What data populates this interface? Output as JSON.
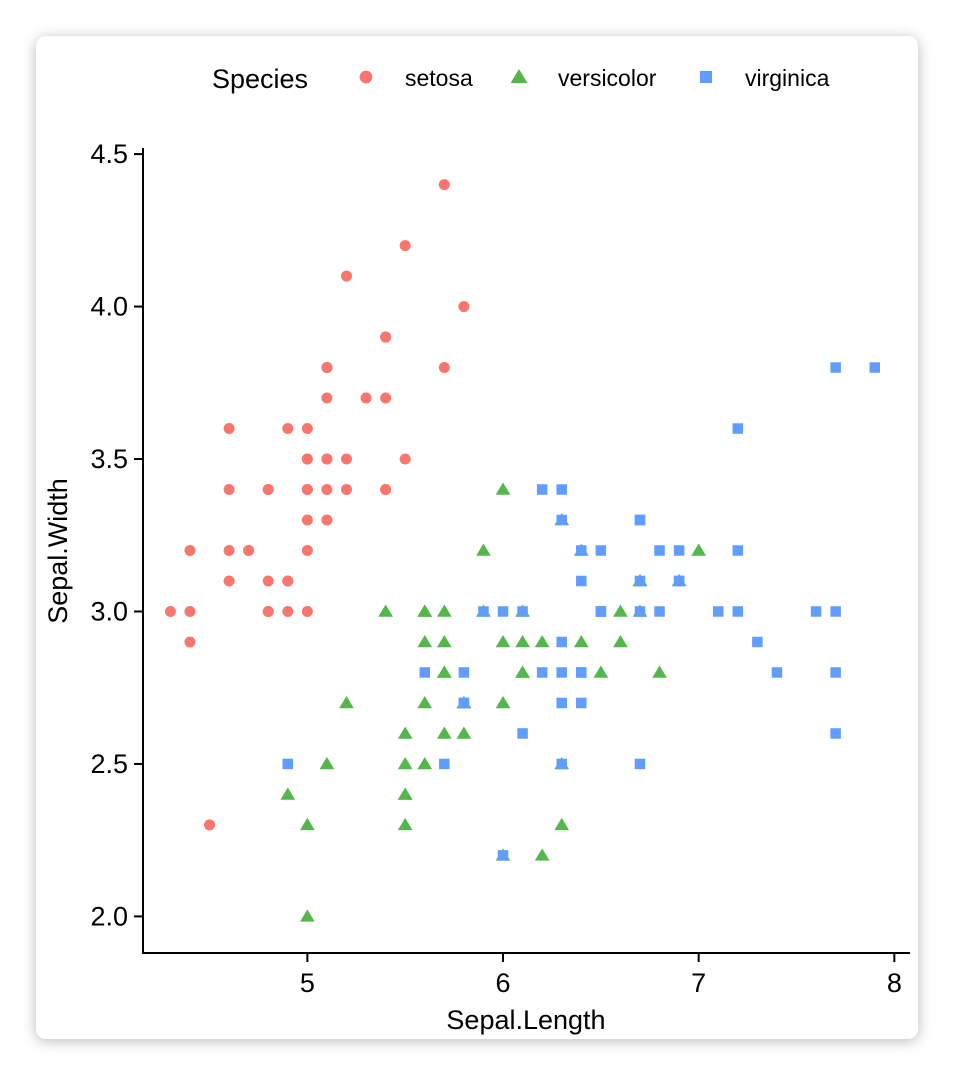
{
  "chart_data": {
    "type": "scatter",
    "xlabel": "Sepal.Length",
    "ylabel": "Sepal.Width",
    "xlim": [
      4.16,
      8.08
    ],
    "ylim": [
      1.88,
      4.52
    ],
    "xticks": [
      5,
      6,
      7,
      8
    ],
    "yticks": [
      2.0,
      2.5,
      3.0,
      3.5,
      4.0,
      4.5
    ],
    "xtick_labels": [
      "5",
      "6",
      "7",
      "8"
    ],
    "ytick_labels": [
      "2.0",
      "2.5",
      "3.0",
      "3.5",
      "4.0",
      "4.5"
    ],
    "grid": false,
    "legend": {
      "title": "Species",
      "position": "top"
    },
    "series": [
      {
        "name": "setosa",
        "color": "#F8766D",
        "marker": "circle",
        "x": [
          5.1,
          4.9,
          4.7,
          4.6,
          5.0,
          5.4,
          4.6,
          5.0,
          4.4,
          4.9,
          5.4,
          4.8,
          4.8,
          4.3,
          5.8,
          5.7,
          5.4,
          5.1,
          5.7,
          5.1,
          5.4,
          5.1,
          4.6,
          5.1,
          4.8,
          5.0,
          5.0,
          5.2,
          5.2,
          4.7,
          4.8,
          5.4,
          5.2,
          5.5,
          4.9,
          5.0,
          5.5,
          4.9,
          4.4,
          5.1,
          5.0,
          4.5,
          4.4,
          5.0,
          5.1,
          4.8,
          5.1,
          4.6,
          5.3,
          5.0
        ],
        "y": [
          3.5,
          3.0,
          3.2,
          3.1,
          3.6,
          3.9,
          3.4,
          3.4,
          2.9,
          3.1,
          3.7,
          3.4,
          3.0,
          3.0,
          4.0,
          4.4,
          3.9,
          3.5,
          3.8,
          3.8,
          3.4,
          3.7,
          3.6,
          3.3,
          3.4,
          3.0,
          3.4,
          3.5,
          3.4,
          3.2,
          3.1,
          3.4,
          4.1,
          4.2,
          3.1,
          3.2,
          3.5,
          3.6,
          3.0,
          3.4,
          3.5,
          2.3,
          3.2,
          3.5,
          3.8,
          3.0,
          3.8,
          3.2,
          3.7,
          3.3
        ]
      },
      {
        "name": "versicolor",
        "color": "#53B74C",
        "marker": "triangle",
        "x": [
          7.0,
          6.4,
          6.9,
          5.5,
          6.5,
          5.7,
          6.3,
          4.9,
          6.6,
          5.2,
          5.0,
          5.9,
          6.0,
          6.1,
          5.6,
          6.7,
          5.6,
          5.8,
          6.2,
          5.6,
          5.9,
          6.1,
          6.3,
          6.1,
          6.4,
          6.6,
          6.8,
          6.7,
          6.0,
          5.7,
          5.5,
          5.5,
          5.8,
          6.0,
          5.4,
          6.0,
          6.7,
          6.3,
          5.6,
          5.5,
          5.5,
          6.1,
          5.8,
          5.0,
          5.6,
          5.7,
          5.7,
          6.2,
          5.1,
          5.7
        ],
        "y": [
          3.2,
          3.2,
          3.1,
          2.3,
          2.8,
          2.8,
          3.3,
          2.4,
          2.9,
          2.7,
          2.0,
          3.0,
          2.2,
          2.9,
          2.9,
          3.1,
          3.0,
          2.7,
          2.2,
          2.5,
          3.2,
          2.8,
          2.5,
          2.8,
          2.9,
          3.0,
          2.8,
          3.0,
          2.9,
          2.6,
          2.4,
          2.4,
          2.7,
          2.7,
          3.0,
          3.4,
          3.1,
          2.3,
          3.0,
          2.5,
          2.6,
          3.0,
          2.6,
          2.3,
          2.7,
          3.0,
          2.9,
          2.9,
          2.5,
          2.8
        ]
      },
      {
        "name": "virginica",
        "color": "#619CFF",
        "marker": "square",
        "x": [
          6.3,
          5.8,
          7.1,
          6.3,
          6.5,
          7.6,
          4.9,
          7.3,
          6.7,
          7.2,
          6.5,
          6.4,
          6.8,
          5.7,
          5.8,
          6.4,
          6.5,
          7.7,
          7.7,
          6.0,
          6.9,
          5.6,
          7.7,
          6.3,
          6.7,
          7.2,
          6.2,
          6.1,
          6.4,
          7.2,
          7.4,
          7.9,
          6.4,
          6.3,
          6.1,
          7.7,
          6.3,
          6.4,
          6.0,
          6.9,
          6.7,
          6.9,
          5.8,
          6.8,
          6.7,
          6.7,
          6.3,
          6.5,
          6.2,
          5.9
        ],
        "y": [
          3.3,
          2.7,
          3.0,
          2.9,
          3.0,
          3.0,
          2.5,
          2.9,
          2.5,
          3.6,
          3.2,
          2.7,
          3.0,
          2.5,
          2.8,
          3.2,
          3.0,
          3.8,
          2.6,
          2.2,
          3.2,
          2.8,
          2.8,
          2.7,
          3.3,
          3.2,
          2.8,
          3.0,
          2.8,
          3.0,
          2.8,
          3.8,
          2.8,
          2.8,
          2.6,
          3.0,
          3.4,
          3.1,
          3.0,
          3.1,
          3.1,
          3.1,
          2.7,
          3.2,
          3.3,
          3.0,
          2.5,
          3.0,
          3.4,
          3.0
        ]
      }
    ]
  }
}
